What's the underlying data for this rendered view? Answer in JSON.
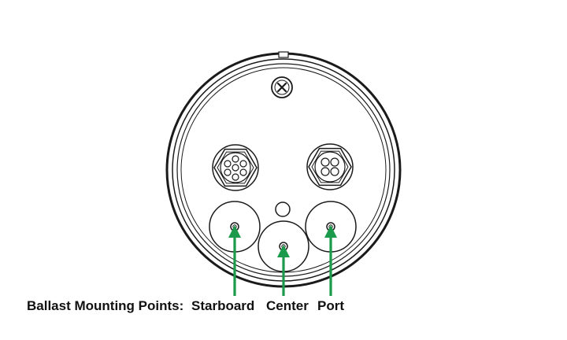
{
  "labels": {
    "title": "Ballast Mounting Points:",
    "starboard": "Starboard",
    "center": "Center",
    "port": "Port"
  },
  "colors": {
    "outline": "#1a1a1a",
    "arrow": "#1a9a4a",
    "background": "#ffffff"
  },
  "icons": {
    "top_screw": "phillips-screw-icon",
    "left_connector": "six-pin-connector-icon",
    "right_connector": "four-pin-connector-icon"
  }
}
